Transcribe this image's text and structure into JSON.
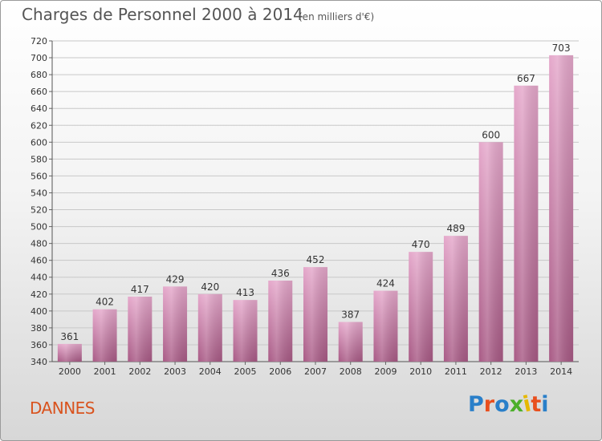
{
  "title": "Charges de Personnel 2000 à 2014",
  "subtitle": "(en milliers d'€)",
  "commune": "DANNES",
  "logo": {
    "text": "Proxiti",
    "colors": [
      "#2a7fc9",
      "#e84f1e",
      "#2a7fc9",
      "#4caf2a",
      "#e6b800",
      "#e84f1e",
      "#2a7fc9"
    ]
  },
  "colors": {
    "bar_light": "#e5a8cb",
    "bar_dark": "#a85a85",
    "text_orange": "#d9531e"
  },
  "chart_data": {
    "type": "bar",
    "categories": [
      "2000",
      "2001",
      "2002",
      "2003",
      "2004",
      "2005",
      "2006",
      "2007",
      "2008",
      "2009",
      "2010",
      "2011",
      "2012",
      "2013",
      "2014"
    ],
    "values": [
      361,
      402,
      417,
      429,
      420,
      413,
      436,
      452,
      387,
      424,
      470,
      489,
      600,
      667,
      703
    ],
    "ylim": [
      340,
      720
    ],
    "yticks": [
      340,
      360,
      380,
      400,
      420,
      440,
      460,
      480,
      500,
      520,
      540,
      560,
      580,
      600,
      620,
      640,
      660,
      680,
      700,
      720
    ],
    "grid": true,
    "legend": "none"
  }
}
